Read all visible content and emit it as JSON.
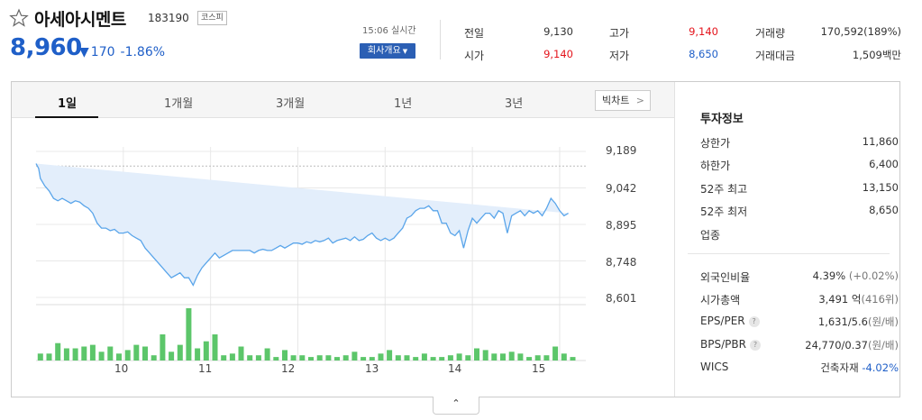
{
  "header": {
    "name": "아세아시멘트",
    "code": "183190",
    "market": "코스피",
    "price": "8,960",
    "change_arrow": "▼",
    "change_amount": "170",
    "change_pct": "-1.86%",
    "realtime": "15:06 실시간",
    "company_btn": "회사개요"
  },
  "quotes": [
    {
      "label": "전일",
      "value": "9,130",
      "color": "default"
    },
    {
      "label": "시가",
      "value": "9,140",
      "color": "red"
    },
    {
      "label": "고가",
      "value": "9,140",
      "color": "red"
    },
    {
      "label": "저가",
      "value": "8,650",
      "color": "blue"
    },
    {
      "label": "거래량",
      "value": "170,592(189%)",
      "color": "default"
    },
    {
      "label": "거래대금",
      "value": "1,509백만",
      "color": "default"
    }
  ],
  "tabs": [
    "1일",
    "1개월",
    "3개월",
    "1년",
    "3년"
  ],
  "active_tab": "1일",
  "bigchart": "빅차트",
  "colors": {
    "up": "#e4141c",
    "down": "#1f5fc8",
    "line": "#5aa5ea",
    "fill": "#e3eefb",
    "volume": "#5cc66a"
  },
  "chart_data": {
    "type": "area",
    "y_ticks": [
      "9,189",
      "9,042",
      "8,895",
      "8,748",
      "8,601"
    ],
    "y_tick_values": [
      9189,
      9042,
      8895,
      8748,
      8601
    ],
    "ylim": [
      8601,
      9189
    ],
    "x_ticks": [
      "10",
      "11",
      "12",
      "13",
      "14",
      "15"
    ],
    "x_tick_values": [
      10,
      11,
      12,
      13,
      14,
      15
    ],
    "xlim": [
      9.0,
      15.3
    ],
    "reference": 9130,
    "price_x": [
      9.0,
      9.03,
      9.05,
      9.1,
      9.15,
      9.2,
      9.25,
      9.3,
      9.35,
      9.4,
      9.45,
      9.5,
      9.55,
      9.6,
      9.65,
      9.7,
      9.75,
      9.8,
      9.85,
      9.9,
      9.95,
      10.0,
      10.05,
      10.1,
      10.15,
      10.2,
      10.25,
      10.3,
      10.35,
      10.4,
      10.45,
      10.5,
      10.55,
      10.6,
      10.65,
      10.7,
      10.75,
      10.8,
      10.85,
      10.9,
      10.95,
      11.0,
      11.05,
      11.1,
      11.15,
      11.2,
      11.25,
      11.3,
      11.35,
      11.4,
      11.45,
      11.5,
      11.55,
      11.6,
      11.65,
      11.7,
      11.75,
      11.8,
      11.85,
      11.9,
      11.95,
      12.0,
      12.05,
      12.1,
      12.15,
      12.2,
      12.25,
      12.3,
      12.35,
      12.4,
      12.45,
      12.5,
      12.55,
      12.6,
      12.65,
      12.7,
      12.75,
      12.8,
      12.85,
      12.9,
      12.95,
      13.0,
      13.05,
      13.1,
      13.15,
      13.2,
      13.25,
      13.3,
      13.35,
      13.4,
      13.45,
      13.5,
      13.55,
      13.6,
      13.65,
      13.7,
      13.75,
      13.8,
      13.85,
      13.9,
      13.95,
      14.0,
      14.05,
      14.1,
      14.15,
      14.2,
      14.25,
      14.3,
      14.35,
      14.4,
      14.45,
      14.5,
      14.55,
      14.6,
      14.65,
      14.7,
      14.75,
      14.8,
      14.85,
      14.9,
      14.95,
      15.0,
      15.05,
      15.1,
      15.15
    ],
    "price_y": [
      9140,
      9120,
      9080,
      9050,
      9030,
      9000,
      8990,
      9000,
      8990,
      8980,
      8990,
      8985,
      8970,
      8960,
      8940,
      8900,
      8880,
      8880,
      8870,
      8875,
      8860,
      8860,
      8865,
      8850,
      8840,
      8830,
      8800,
      8780,
      8760,
      8740,
      8720,
      8700,
      8680,
      8690,
      8700,
      8680,
      8680,
      8650,
      8690,
      8720,
      8740,
      8760,
      8780,
      8760,
      8770,
      8780,
      8790,
      8790,
      8790,
      8790,
      8790,
      8780,
      8790,
      8795,
      8790,
      8790,
      8800,
      8810,
      8800,
      8810,
      8820,
      8820,
      8815,
      8825,
      8820,
      8830,
      8825,
      8830,
      8840,
      8820,
      8830,
      8835,
      8840,
      8830,
      8845,
      8830,
      8835,
      8850,
      8860,
      8840,
      8830,
      8840,
      8830,
      8840,
      8860,
      8880,
      8920,
      8930,
      8950,
      8960,
      8960,
      8970,
      8950,
      8950,
      8900,
      8900,
      8860,
      8850,
      8870,
      8800,
      8870,
      8920,
      8900,
      8920,
      8940,
      8940,
      8920,
      8950,
      8940,
      8860,
      8930,
      8940,
      8950,
      8930,
      8950,
      8940,
      8950,
      8930,
      8960,
      9000,
      8980,
      8950,
      8930,
      8940
    ],
    "volume_x": [
      9.05,
      9.15,
      9.25,
      9.35,
      9.45,
      9.55,
      9.65,
      9.75,
      9.85,
      9.95,
      10.05,
      10.15,
      10.25,
      10.35,
      10.45,
      10.55,
      10.65,
      10.75,
      10.85,
      10.95,
      11.05,
      11.15,
      11.25,
      11.35,
      11.45,
      11.55,
      11.65,
      11.75,
      11.85,
      11.95,
      12.05,
      12.15,
      12.25,
      12.35,
      12.45,
      12.55,
      12.65,
      12.75,
      12.85,
      12.95,
      13.05,
      13.15,
      13.25,
      13.35,
      13.45,
      13.55,
      13.65,
      13.75,
      13.85,
      13.95,
      14.05,
      14.15,
      14.25,
      14.35,
      14.45,
      14.55,
      14.65,
      14.75,
      14.85,
      14.95,
      15.05,
      15.15
    ],
    "volume": [
      8,
      8,
      20,
      14,
      14,
      16,
      18,
      10,
      16,
      8,
      12,
      18,
      16,
      6,
      30,
      10,
      18,
      60,
      14,
      22,
      30,
      6,
      8,
      16,
      6,
      6,
      14,
      4,
      12,
      6,
      6,
      4,
      6,
      6,
      4,
      6,
      10,
      4,
      4,
      8,
      12,
      6,
      6,
      4,
      8,
      4,
      4,
      6,
      8,
      6,
      14,
      12,
      8,
      8,
      10,
      8,
      4,
      6,
      6,
      16,
      8,
      4
    ],
    "volume_max": 60
  },
  "invest": {
    "title": "투자정보",
    "rows": [
      {
        "label": "상한가",
        "value": "11,860",
        "color": "red"
      },
      {
        "label": "하한가",
        "value": "6,400",
        "color": "blue"
      },
      {
        "label": "52주 최고",
        "value": "13,150",
        "color": "default"
      },
      {
        "label": "52주 최저",
        "value": "8,650",
        "color": "default"
      },
      {
        "label": "업종",
        "value": "",
        "color": "default"
      }
    ],
    "rows2": [
      {
        "label": "외국인비율",
        "value": "4.39%",
        "extra": "(+0.02%)",
        "help": false
      },
      {
        "label": "시가총액",
        "value": "3,491 억",
        "extra": "(416위)",
        "help": false
      },
      {
        "label": "EPS/PER",
        "value": "1,631/5.6",
        "extra": "(원/배)",
        "help": true
      },
      {
        "label": "BPS/PBR",
        "value": "24,770/0.37",
        "extra": "(원/배)",
        "help": true
      },
      {
        "label": "WICS",
        "value": "건축자재",
        "extra": "-4.02%",
        "help": false
      }
    ]
  },
  "collapse": "⌃"
}
